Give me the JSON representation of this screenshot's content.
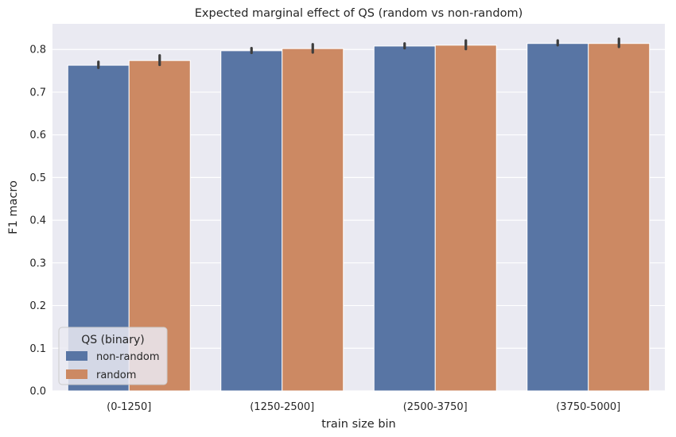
{
  "chart_data": {
    "type": "bar",
    "title": "Expected marginal effect of QS (random vs non-random)",
    "xlabel": "train size bin",
    "ylabel": "F1 macro",
    "categories": [
      "(0-1250]",
      "(1250-2500]",
      "(2500-3750]",
      "(3750-5000]"
    ],
    "series": [
      {
        "name": "non-random",
        "color": "#5875a4",
        "values": [
          0.763,
          0.797,
          0.808,
          0.814
        ],
        "ci_low": [
          0.757,
          0.792,
          0.803,
          0.81
        ],
        "ci_high": [
          0.771,
          0.803,
          0.814,
          0.821
        ]
      },
      {
        "name": "random",
        "color": "#cc8963",
        "values": [
          0.774,
          0.802,
          0.81,
          0.814
        ],
        "ci_low": [
          0.764,
          0.793,
          0.801,
          0.806
        ],
        "ci_high": [
          0.786,
          0.812,
          0.821,
          0.825
        ]
      }
    ],
    "ylim": [
      0,
      0.86
    ],
    "yticks": [
      0.0,
      0.1,
      0.2,
      0.3,
      0.4,
      0.5,
      0.6,
      0.7,
      0.8
    ],
    "ytick_labels": [
      "0.0",
      "0.1",
      "0.2",
      "0.3",
      "0.4",
      "0.5",
      "0.6",
      "0.7",
      "0.8"
    ],
    "grid": true,
    "background_color": "#eaeaf2",
    "legend": {
      "title": "QS (binary)",
      "placement": "lower-left"
    }
  }
}
